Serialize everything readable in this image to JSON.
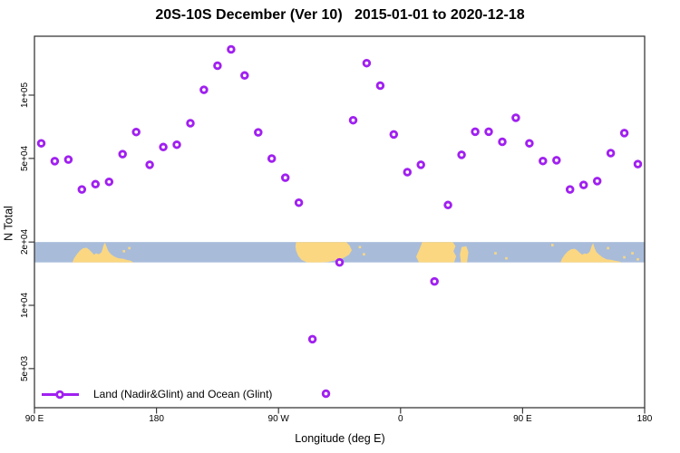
{
  "title": "20S-10S December (Ver 10)   2015-01-01 to 2020-12-18",
  "axes": {
    "x": {
      "label": "Longitude (deg E)",
      "ticks": [
        {
          "lon": 90,
          "label": "90 E"
        },
        {
          "lon": 180,
          "label": "180"
        },
        {
          "lon": 270,
          "label": "90 W"
        },
        {
          "lon": 360,
          "label": "0"
        },
        {
          "lon": 450,
          "label": "90 E"
        },
        {
          "lon": 540,
          "label": "180"
        }
      ]
    },
    "y": {
      "label": "N Total",
      "ticks": [
        {
          "value": 100000,
          "label": "1e+05"
        },
        {
          "value": 50000,
          "label": "5e+04"
        },
        {
          "value": 20000,
          "label": "2e+04"
        },
        {
          "value": 10000,
          "label": "1e+04"
        },
        {
          "value": 5000,
          "label": "5e+03"
        }
      ]
    }
  },
  "legend": {
    "label": "Land (Nadir&Glint) and Ocean (Glint)"
  },
  "colors": {
    "marker": "#a020f0",
    "ocean": "#a8bcda",
    "land": "#fbd781",
    "axis": "#3a3a3a"
  },
  "map_strip": {
    "description": "world coastline band for latitude 20S-10S drawn across the plot",
    "top_value": 20000,
    "bottom_value": 16000,
    "land": [
      {
        "name": "australia",
        "poly": [
          [
            118,
            1
          ],
          [
            119,
            0.82
          ],
          [
            121,
            0.62
          ],
          [
            123.5,
            0.42
          ],
          [
            126,
            0.3
          ],
          [
            128.5,
            0.28
          ],
          [
            130.5,
            0.38
          ],
          [
            132.5,
            0.52
          ],
          [
            134,
            0.62
          ],
          [
            135.5,
            0.55
          ],
          [
            137.5,
            0.6
          ],
          [
            139.5,
            0.5
          ],
          [
            141,
            0.15
          ],
          [
            142,
            0.03
          ],
          [
            143,
            0.2
          ],
          [
            144.5,
            0.45
          ],
          [
            146.5,
            0.6
          ],
          [
            149,
            0.72
          ],
          [
            152,
            0.8
          ],
          [
            155.5,
            0.82
          ],
          [
            158,
            0.88
          ],
          [
            161,
            0.92
          ],
          [
            163,
            1
          ]
        ]
      },
      {
        "name": "south-america",
        "poly": [
          [
            283,
            0
          ],
          [
            320,
            0
          ],
          [
            322.5,
            0.18
          ],
          [
            324,
            0.4
          ],
          [
            322,
            0.62
          ],
          [
            318,
            0.78
          ],
          [
            312,
            0.9
          ],
          [
            306,
            0.98
          ],
          [
            300,
            1
          ],
          [
            291,
            1
          ],
          [
            287,
            0.88
          ],
          [
            284.5,
            0.68
          ],
          [
            283,
            0.42
          ],
          [
            282.5,
            0.2
          ]
        ]
      },
      {
        "name": "africa",
        "poly": [
          [
            376,
            0
          ],
          [
            398.5,
            0
          ],
          [
            400.5,
            0.2
          ],
          [
            399,
            0.45
          ],
          [
            401,
            0.7
          ],
          [
            399.5,
            1
          ],
          [
            373.5,
            1
          ],
          [
            371.5,
            0.72
          ],
          [
            374,
            0.35
          ]
        ]
      },
      {
        "name": "madagascar",
        "poly": [
          [
            405,
            0.25
          ],
          [
            408.5,
            0.2
          ],
          [
            410,
            0.5
          ],
          [
            409,
            1
          ],
          [
            404.5,
            1
          ],
          [
            403.8,
            0.6
          ]
        ]
      },
      {
        "name": "australia-wrap",
        "poly": [
          [
            478,
            1
          ],
          [
            479,
            0.82
          ],
          [
            481,
            0.62
          ],
          [
            483.5,
            0.45
          ],
          [
            486,
            0.35
          ],
          [
            488.5,
            0.33
          ],
          [
            490.5,
            0.42
          ],
          [
            492.5,
            0.55
          ],
          [
            494,
            0.62
          ],
          [
            495.5,
            0.56
          ],
          [
            497.5,
            0.58
          ],
          [
            499.5,
            0.48
          ],
          [
            501,
            0.18
          ],
          [
            502,
            0.05
          ],
          [
            503,
            0.3
          ],
          [
            504.5,
            0.5
          ],
          [
            506.5,
            0.62
          ],
          [
            509,
            0.75
          ],
          [
            512,
            0.85
          ],
          [
            515.5,
            0.88
          ],
          [
            518,
            0.92
          ],
          [
            521,
            0.95
          ],
          [
            523,
            1
          ]
        ]
      }
    ],
    "islands": [
      [
        156,
        0.45
      ],
      [
        160,
        0.3
      ],
      [
        330,
        0.25
      ],
      [
        333,
        0.6
      ],
      [
        430,
        0.55
      ],
      [
        438,
        0.8
      ],
      [
        472,
        0.15
      ],
      [
        513,
        0.3
      ],
      [
        525,
        0.75
      ],
      [
        531,
        0.55
      ],
      [
        535,
        0.85
      ]
    ]
  },
  "chart_data": {
    "type": "scatter",
    "title": "20S-10S December (Ver 10)   2015-01-01 to 2020-12-18",
    "xlabel": "Longitude (deg E)",
    "ylabel": "N Total",
    "x_axis": {
      "range": [
        90,
        540
      ],
      "unit": "deg E continuing eastward (wraps past 180 through 90W, 0, back to 180)"
    },
    "y_axis": {
      "scale": "log10",
      "range": [
        3260,
        191000
      ]
    },
    "grid": false,
    "legend_position": "bottom-left inside plot",
    "series": [
      {
        "name": "Land (Nadir&Glint) and Ocean (Glint)",
        "marker": "open-circle",
        "points": [
          [
            95,
            59000
          ],
          [
            105,
            48500
          ],
          [
            115,
            49400
          ],
          [
            125,
            35600
          ],
          [
            135,
            37700
          ],
          [
            145,
            38700
          ],
          [
            155,
            52400
          ],
          [
            165,
            66800
          ],
          [
            175,
            46600
          ],
          [
            185,
            56600
          ],
          [
            195,
            58100
          ],
          [
            205,
            73500
          ],
          [
            215,
            106000
          ],
          [
            225,
            138000
          ],
          [
            235,
            165000
          ],
          [
            245,
            124000
          ],
          [
            255,
            66500
          ],
          [
            265,
            49900
          ],
          [
            275,
            40500
          ],
          [
            285,
            30800
          ],
          [
            295,
            6900
          ],
          [
            305,
            3800
          ],
          [
            315,
            16000
          ],
          [
            325,
            76000
          ],
          [
            335,
            142000
          ],
          [
            345,
            111000
          ],
          [
            355,
            65000
          ],
          [
            365,
            43000
          ],
          [
            375,
            46600
          ],
          [
            385,
            13000
          ],
          [
            395,
            30000
          ],
          [
            405,
            52000
          ],
          [
            415,
            67000
          ],
          [
            425,
            67000
          ],
          [
            435,
            60000
          ],
          [
            445,
            78000
          ],
          [
            455,
            59000
          ],
          [
            465,
            48600
          ],
          [
            475,
            49000
          ],
          [
            485,
            35600
          ],
          [
            495,
            37400
          ],
          [
            505,
            39000
          ],
          [
            515,
            53000
          ],
          [
            525,
            66000
          ],
          [
            535,
            47000
          ]
        ]
      }
    ]
  }
}
